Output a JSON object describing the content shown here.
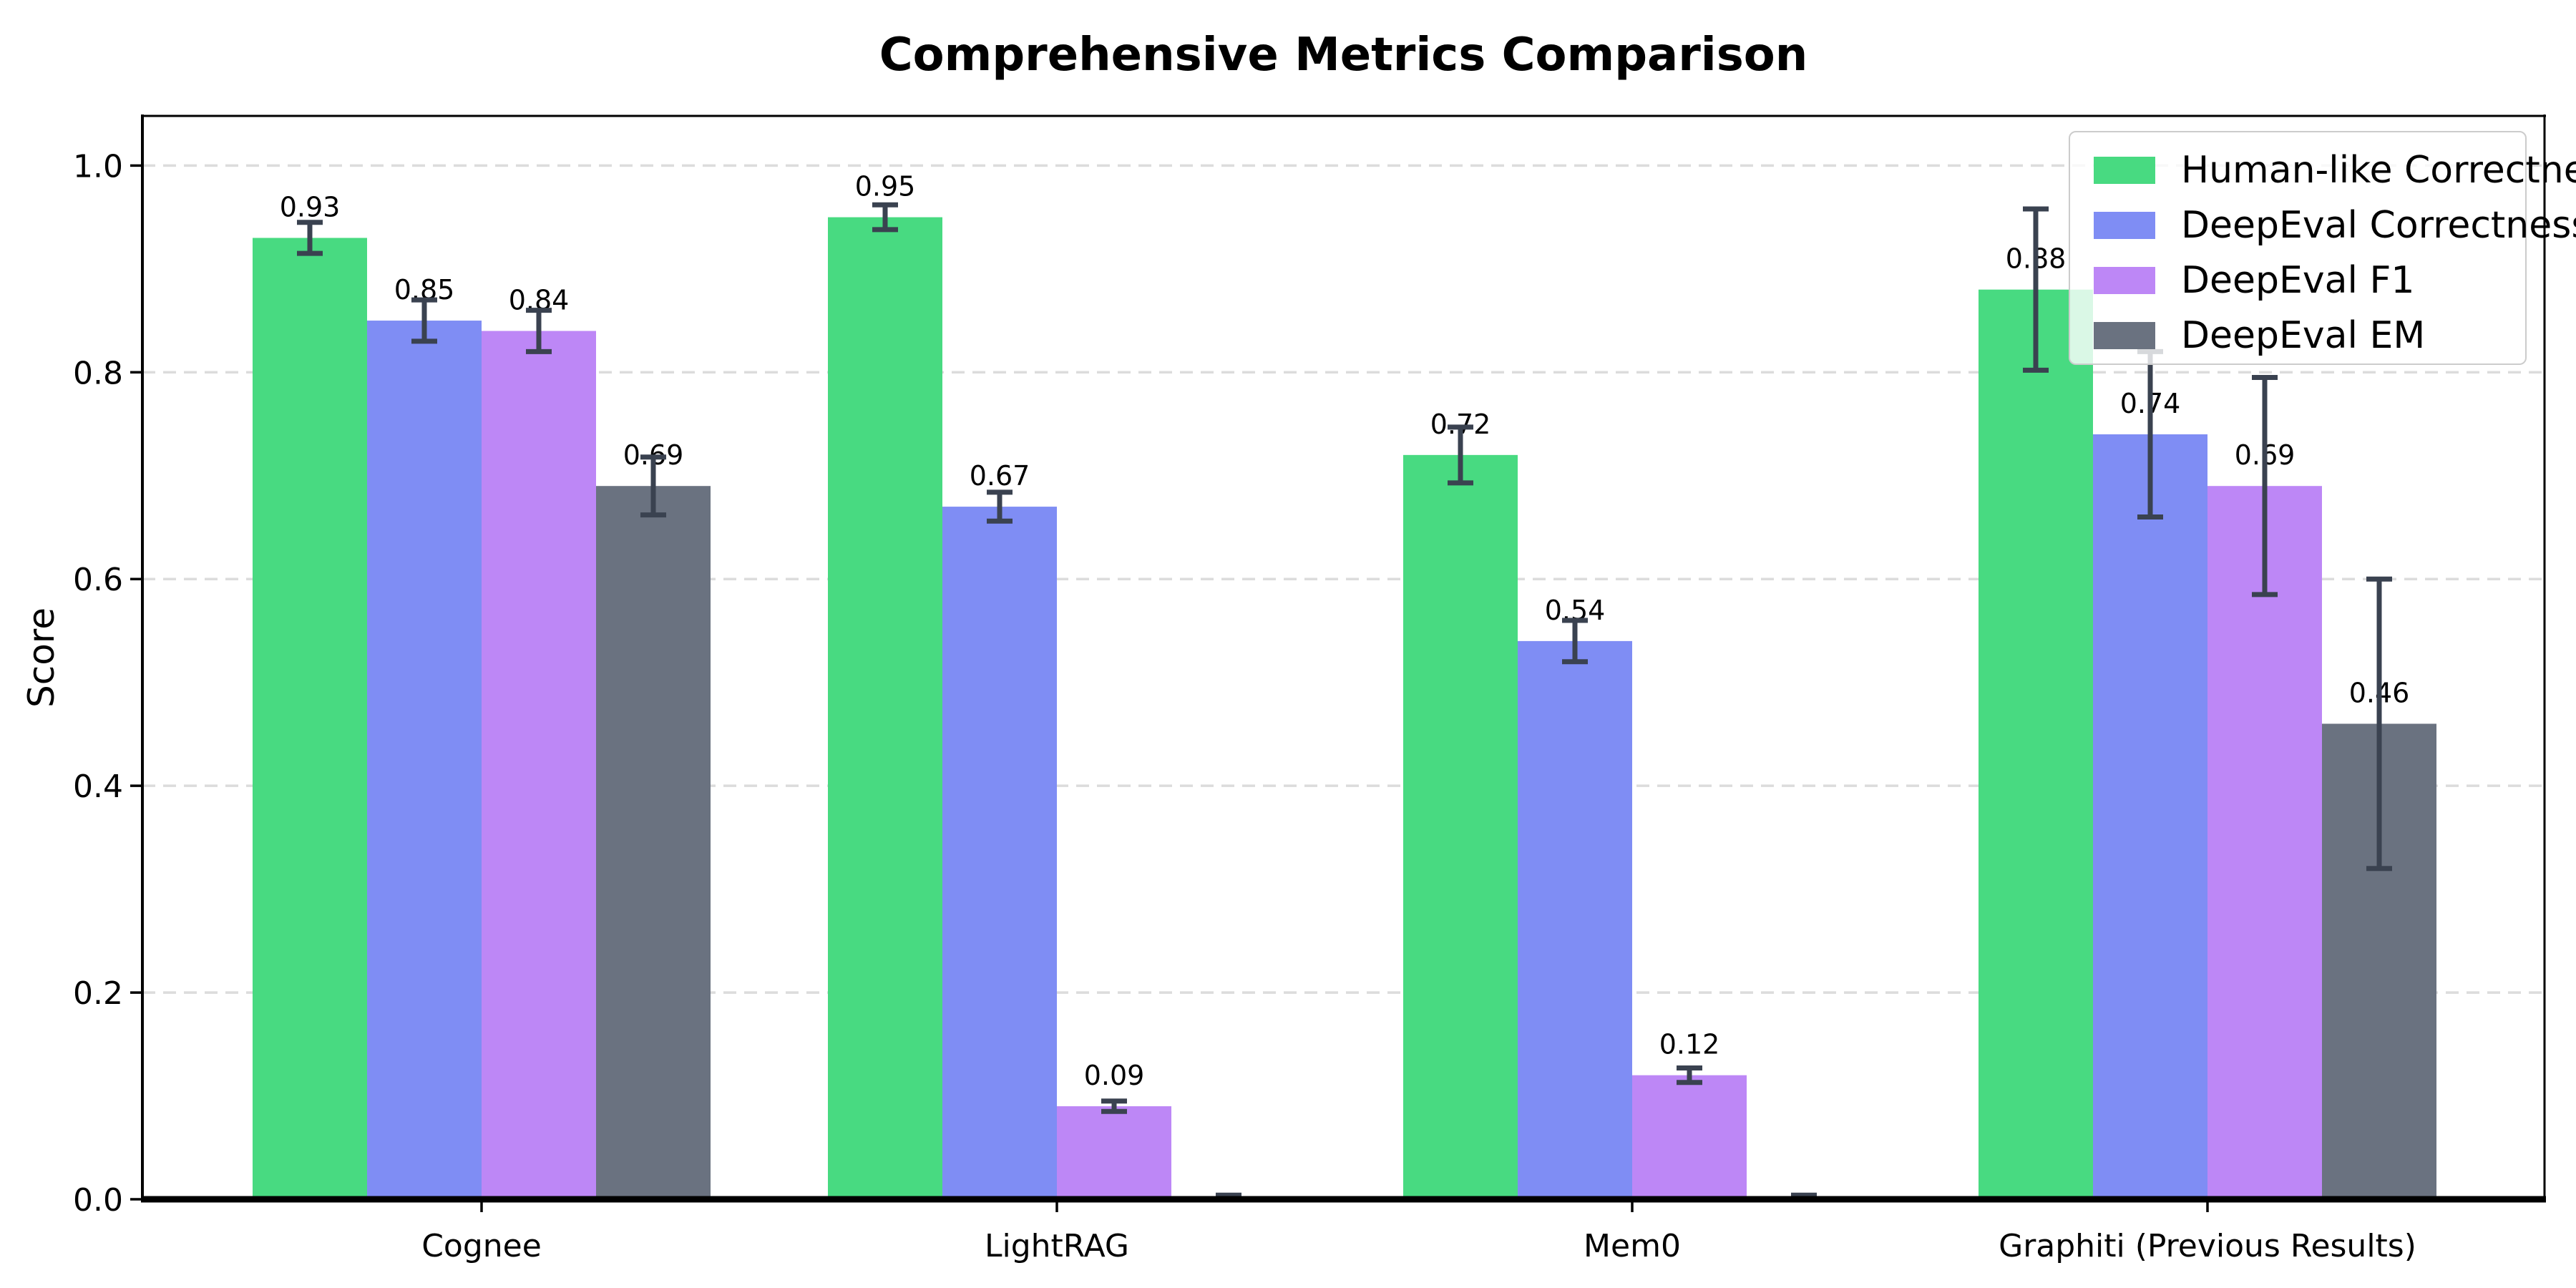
{
  "chart_data": {
    "type": "bar",
    "title": "Comprehensive Metrics Comparison",
    "ylabel": "Score",
    "xlabel": "",
    "categories": [
      "Cognee",
      "LightRAG",
      "Mem0",
      "Graphiti (Previous Results)"
    ],
    "series": [
      {
        "name": "Human-like Correctness",
        "color": "#48da81",
        "values": [
          0.93,
          0.95,
          0.72,
          0.88
        ],
        "errors": [
          0.015,
          0.012,
          0.027,
          0.078
        ],
        "bar_labels": [
          "0.93",
          "0.95",
          "0.72",
          "0.88"
        ]
      },
      {
        "name": "DeepEval Correctness",
        "color": "#7f8df4",
        "values": [
          0.85,
          0.67,
          0.54,
          0.74
        ],
        "errors": [
          0.02,
          0.014,
          0.02,
          0.08
        ],
        "bar_labels": [
          "0.85",
          "0.67",
          "0.54",
          "0.74"
        ]
      },
      {
        "name": "DeepEval F1",
        "color": "#bd87f6",
        "values": [
          0.84,
          0.09,
          0.12,
          0.69
        ],
        "errors": [
          0.02,
          0.005,
          0.007,
          0.105
        ],
        "bar_labels": [
          "0.84",
          "0.09",
          "0.12",
          "0.69"
        ]
      },
      {
        "name": "DeepEval EM",
        "color": "#6a7280",
        "values": [
          0.69,
          0.0,
          0.0,
          0.46
        ],
        "errors": [
          0.028,
          0.004,
          0.004,
          0.14
        ],
        "bar_labels": [
          "0.69",
          "",
          "",
          "0.46"
        ]
      }
    ],
    "ytick_labels": [
      "0.0",
      "0.2",
      "0.4",
      "0.6",
      "0.8",
      "1.0"
    ],
    "yticks": [
      0.0,
      0.2,
      0.4,
      0.6,
      0.8,
      1.0
    ],
    "ylim": [
      0,
      1.048
    ],
    "grid": {
      "axis": "y",
      "style": "dashed",
      "color": "#dcdcdc"
    },
    "legend": {
      "position": "upper right"
    },
    "errorbar_color": "#3a4250",
    "axis_color": "#000000",
    "background": "#ffffff"
  }
}
